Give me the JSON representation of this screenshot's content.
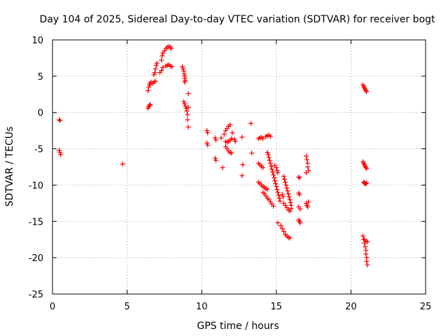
{
  "chart_data": {
    "type": "scatter",
    "title": "Day 104 of 2025, Sidereal Day-to-day VTEC variation (SDTVAR) for receiver bogt",
    "xlabel": "GPS time / hours",
    "ylabel": "SDTVAR / TECUs",
    "xlim": [
      0,
      25
    ],
    "ylim": [
      -25,
      10
    ],
    "xticks": [
      "0",
      "5",
      "10",
      "15",
      "20",
      "25"
    ],
    "yticks": [
      "10",
      "5",
      "0",
      "-5",
      "-10",
      "-15",
      "-20",
      "-25"
    ],
    "grid": true,
    "marker": "+",
    "color": "#ff0000",
    "series": [
      {
        "name": "SDTVAR",
        "points": [
          [
            0.45,
            -1.0
          ],
          [
            0.5,
            -1.1
          ],
          [
            0.45,
            -5.2
          ],
          [
            0.5,
            -5.5
          ],
          [
            0.55,
            -5.8
          ],
          [
            4.7,
            -7.1
          ],
          [
            6.4,
            0.6
          ],
          [
            6.45,
            0.8
          ],
          [
            6.5,
            1.0
          ],
          [
            6.55,
            1.1
          ],
          [
            6.4,
            3.0
          ],
          [
            6.45,
            3.5
          ],
          [
            6.5,
            3.8
          ],
          [
            6.55,
            4.0
          ],
          [
            6.6,
            4.2
          ],
          [
            6.7,
            4.0
          ],
          [
            6.8,
            4.2
          ],
          [
            6.9,
            4.3
          ],
          [
            6.8,
            5.2
          ],
          [
            6.85,
            5.5
          ],
          [
            6.9,
            6.0
          ],
          [
            6.95,
            6.5
          ],
          [
            7.0,
            6.8
          ],
          [
            7.2,
            5.5
          ],
          [
            7.3,
            5.8
          ],
          [
            7.4,
            6.2
          ],
          [
            7.3,
            7.2
          ],
          [
            7.35,
            7.8
          ],
          [
            7.4,
            8.2
          ],
          [
            7.5,
            8.5
          ],
          [
            7.6,
            8.8
          ],
          [
            7.7,
            9.0
          ],
          [
            7.8,
            9.1
          ],
          [
            7.9,
            9.0
          ],
          [
            7.95,
            8.8
          ],
          [
            7.6,
            6.4
          ],
          [
            7.7,
            6.5
          ],
          [
            7.8,
            6.6
          ],
          [
            7.9,
            6.4
          ],
          [
            8.0,
            6.3
          ],
          [
            8.7,
            6.3
          ],
          [
            8.75,
            6.0
          ],
          [
            8.8,
            5.7
          ],
          [
            8.82,
            5.3
          ],
          [
            8.85,
            5.0
          ],
          [
            8.87,
            4.7
          ],
          [
            8.9,
            4.4
          ],
          [
            8.85,
            4.2
          ],
          [
            8.8,
            1.5
          ],
          [
            8.85,
            1.2
          ],
          [
            8.9,
            0.9
          ],
          [
            8.95,
            0.6
          ],
          [
            9.0,
            0.2
          ],
          [
            9.05,
            -0.3
          ],
          [
            9.1,
            2.6
          ],
          [
            9.1,
            0.7
          ],
          [
            9.05,
            -1.0
          ],
          [
            9.1,
            -2.0
          ],
          [
            10.35,
            -2.5
          ],
          [
            10.4,
            -2.8
          ],
          [
            10.35,
            -4.2
          ],
          [
            10.4,
            -4.5
          ],
          [
            10.9,
            -3.5
          ],
          [
            10.95,
            -3.8
          ],
          [
            10.9,
            -6.3
          ],
          [
            10.95,
            -6.6
          ],
          [
            11.3,
            -3.5
          ],
          [
            11.4,
            -7.6
          ],
          [
            11.5,
            -3.0
          ],
          [
            11.6,
            -2.5
          ],
          [
            11.7,
            -2.2
          ],
          [
            11.8,
            -1.9
          ],
          [
            11.9,
            -1.7
          ],
          [
            11.6,
            -4.0
          ],
          [
            11.7,
            -4.1
          ],
          [
            11.8,
            -4.0
          ],
          [
            11.9,
            -3.8
          ],
          [
            12.0,
            -3.6
          ],
          [
            12.05,
            -2.8
          ],
          [
            11.6,
            -4.7
          ],
          [
            11.7,
            -5.0
          ],
          [
            11.8,
            -5.3
          ],
          [
            11.9,
            -5.5
          ],
          [
            12.0,
            -5.6
          ],
          [
            12.2,
            -3.7
          ],
          [
            12.25,
            -4.0
          ],
          [
            12.7,
            -3.4
          ],
          [
            12.75,
            -7.2
          ],
          [
            12.7,
            -8.7
          ],
          [
            13.3,
            -1.5
          ],
          [
            13.35,
            -5.6
          ],
          [
            13.8,
            -3.6
          ],
          [
            13.9,
            -3.5
          ],
          [
            14.0,
            -3.4
          ],
          [
            14.1,
            -3.6
          ],
          [
            14.3,
            -3.3
          ],
          [
            14.4,
            -3.2
          ],
          [
            14.5,
            -3.1
          ],
          [
            14.6,
            -3.3
          ],
          [
            13.8,
            -7.0
          ],
          [
            13.9,
            -7.2
          ],
          [
            14.0,
            -7.4
          ],
          [
            14.1,
            -7.6
          ],
          [
            13.8,
            -9.6
          ],
          [
            13.9,
            -9.8
          ],
          [
            14.0,
            -10.0
          ],
          [
            14.1,
            -10.2
          ],
          [
            14.2,
            -10.3
          ],
          [
            14.3,
            -10.5
          ],
          [
            14.4,
            -10.6
          ],
          [
            14.4,
            -5.5
          ],
          [
            14.45,
            -5.8
          ],
          [
            14.5,
            -6.2
          ],
          [
            14.55,
            -6.6
          ],
          [
            14.6,
            -7.0
          ],
          [
            14.65,
            -7.4
          ],
          [
            14.7,
            -7.8
          ],
          [
            14.75,
            -8.2
          ],
          [
            14.8,
            -8.6
          ],
          [
            14.85,
            -9.0
          ],
          [
            14.9,
            -9.4
          ],
          [
            14.95,
            -9.8
          ],
          [
            15.0,
            -10.2
          ],
          [
            15.05,
            -10.6
          ],
          [
            15.1,
            -11.0
          ],
          [
            15.15,
            -11.4
          ],
          [
            15.2,
            -11.8
          ],
          [
            15.25,
            -12.2
          ],
          [
            14.1,
            -11.0
          ],
          [
            14.2,
            -11.2
          ],
          [
            14.3,
            -11.5
          ],
          [
            14.4,
            -11.8
          ],
          [
            14.5,
            -12.0
          ],
          [
            14.6,
            -12.3
          ],
          [
            14.7,
            -12.6
          ],
          [
            14.8,
            -12.9
          ],
          [
            14.9,
            -7.3
          ],
          [
            15.0,
            -7.6
          ],
          [
            15.05,
            -8.0
          ],
          [
            15.1,
            -8.3
          ],
          [
            15.1,
            -15.2
          ],
          [
            15.3,
            -15.6
          ],
          [
            15.4,
            -16.0
          ],
          [
            15.5,
            -16.4
          ],
          [
            15.6,
            -16.8
          ],
          [
            15.7,
            -17.0
          ],
          [
            15.8,
            -17.2
          ],
          [
            15.9,
            -17.3
          ],
          [
            15.4,
            -11.3
          ],
          [
            15.45,
            -11.6
          ],
          [
            15.5,
            -8.8
          ],
          [
            15.55,
            -9.2
          ],
          [
            15.6,
            -9.6
          ],
          [
            15.65,
            -10.0
          ],
          [
            15.7,
            -10.4
          ],
          [
            15.75,
            -10.8
          ],
          [
            15.8,
            -11.2
          ],
          [
            15.85,
            -11.6
          ],
          [
            15.9,
            -12.0
          ],
          [
            15.95,
            -12.4
          ],
          [
            16.0,
            -12.8
          ],
          [
            16.0,
            -13.2
          ],
          [
            15.5,
            -12.5
          ],
          [
            15.6,
            -12.8
          ],
          [
            15.7,
            -13.1
          ],
          [
            15.8,
            -13.4
          ],
          [
            15.9,
            -13.6
          ],
          [
            16.5,
            -8.9
          ],
          [
            16.55,
            -9.0
          ],
          [
            16.5,
            -11.1
          ],
          [
            16.55,
            -11.3
          ],
          [
            16.5,
            -13.0
          ],
          [
            16.6,
            -13.3
          ],
          [
            16.5,
            -14.8
          ],
          [
            16.55,
            -15.0
          ],
          [
            16.6,
            -15.2
          ],
          [
            17.0,
            -6.0
          ],
          [
            17.05,
            -6.5
          ],
          [
            17.1,
            -7.0
          ],
          [
            17.1,
            -7.5
          ],
          [
            17.15,
            -8.0
          ],
          [
            17.0,
            -8.3
          ],
          [
            17.0,
            -12.5
          ],
          [
            17.05,
            -12.8
          ],
          [
            17.1,
            -13.0
          ],
          [
            17.15,
            -12.3
          ],
          [
            20.8,
            3.8
          ],
          [
            20.85,
            3.6
          ],
          [
            20.9,
            3.4
          ],
          [
            20.95,
            3.2
          ],
          [
            21.0,
            3.0
          ],
          [
            21.05,
            2.9
          ],
          [
            20.8,
            -6.8
          ],
          [
            20.85,
            -7.0
          ],
          [
            20.9,
            -7.2
          ],
          [
            20.95,
            -7.4
          ],
          [
            21.0,
            -7.6
          ],
          [
            21.05,
            -7.7
          ],
          [
            20.85,
            -9.6
          ],
          [
            20.9,
            -9.7
          ],
          [
            20.95,
            -9.8
          ],
          [
            21.0,
            -9.8
          ],
          [
            21.05,
            -9.7
          ],
          [
            20.8,
            -17.0
          ],
          [
            20.85,
            -17.5
          ],
          [
            20.9,
            -18.0
          ],
          [
            20.95,
            -18.5
          ],
          [
            21.0,
            -19.0
          ],
          [
            21.0,
            -19.5
          ],
          [
            21.05,
            -20.0
          ],
          [
            21.05,
            -20.5
          ],
          [
            21.1,
            -21.0
          ],
          [
            20.9,
            -17.5
          ],
          [
            21.0,
            -17.7
          ],
          [
            21.1,
            -17.8
          ]
        ]
      }
    ]
  }
}
